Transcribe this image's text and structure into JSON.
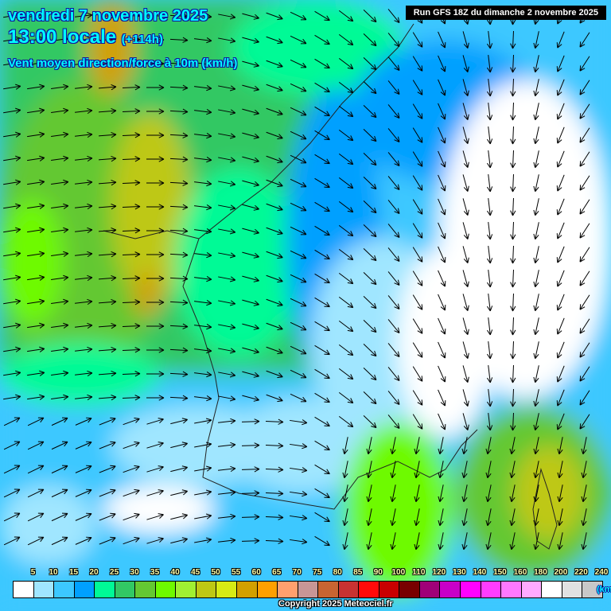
{
  "header": {
    "date": "vendredi 7 novembre 2025",
    "time": "13:00 locale",
    "lead": "(+114h)",
    "subtitle": "Vent moyen direction/force à 10m (km/h)",
    "run": "Run GFS 18Z du dimanche 2 novembre 2025"
  },
  "legend": {
    "labels": [
      "5",
      "10",
      "15",
      "20",
      "25",
      "30",
      "35",
      "40",
      "45",
      "50",
      "55",
      "60",
      "65",
      "70",
      "75",
      "80",
      "85",
      "90",
      "100",
      "110",
      "120",
      "130",
      "140",
      "150",
      "160",
      "180",
      "200",
      "220",
      "240"
    ],
    "colors": [
      "#ffffff",
      "#a0e6ff",
      "#3cc8ff",
      "#00a0ff",
      "#00fa96",
      "#32c864",
      "#64c832",
      "#6efa00",
      "#a0f032",
      "#bec814",
      "#d7eb14",
      "#d2a000",
      "#ffa000",
      "#ffa06e",
      "#c89696",
      "#c86432",
      "#c83232",
      "#ff0a0a",
      "#c80000",
      "#780000",
      "#a00078",
      "#c800c8",
      "#ff00ff",
      "#ff3cff",
      "#ff78ff",
      "#ffaaff",
      "#ffffff",
      "#e1e1e1",
      "#c8c8c8"
    ],
    "unit": "(km/h)"
  },
  "copyright": "Copyright 2025 Meteociel.fr"
}
